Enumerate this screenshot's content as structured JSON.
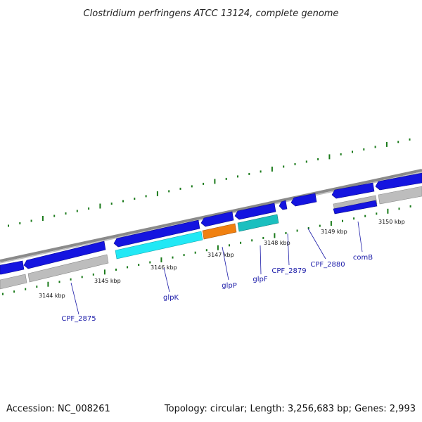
{
  "title": "Clostridium perfringens ATCC 13124, complete genome",
  "footer": {
    "accession": "Accession: NC_008261",
    "summary": "Topology: circular; Length: 3,256,683 bp; Genes: 2,993"
  },
  "colors": {
    "backbone": "#8a8a8a",
    "gene_blue": "#1414e0",
    "glpK": "#22e8f5",
    "glpP": "#f08010",
    "glpF": "#1bbfbf",
    "comB_gray": "#b8b8b8",
    "other_gray": "#bdbdbd",
    "ticks": "#1a7a1a",
    "label": "#1a1aa8"
  },
  "kbp_ticks": [
    "3144 kbp",
    "3145 kbp",
    "3146 kbp",
    "3147 kbp",
    "3148 kbp",
    "3149 kbp",
    "3150 kbp"
  ],
  "gene_labels": [
    "CPF_2875",
    "glpK",
    "glpP",
    "glpF",
    "CPF_2879",
    "CPF_2880",
    "comB"
  ]
}
